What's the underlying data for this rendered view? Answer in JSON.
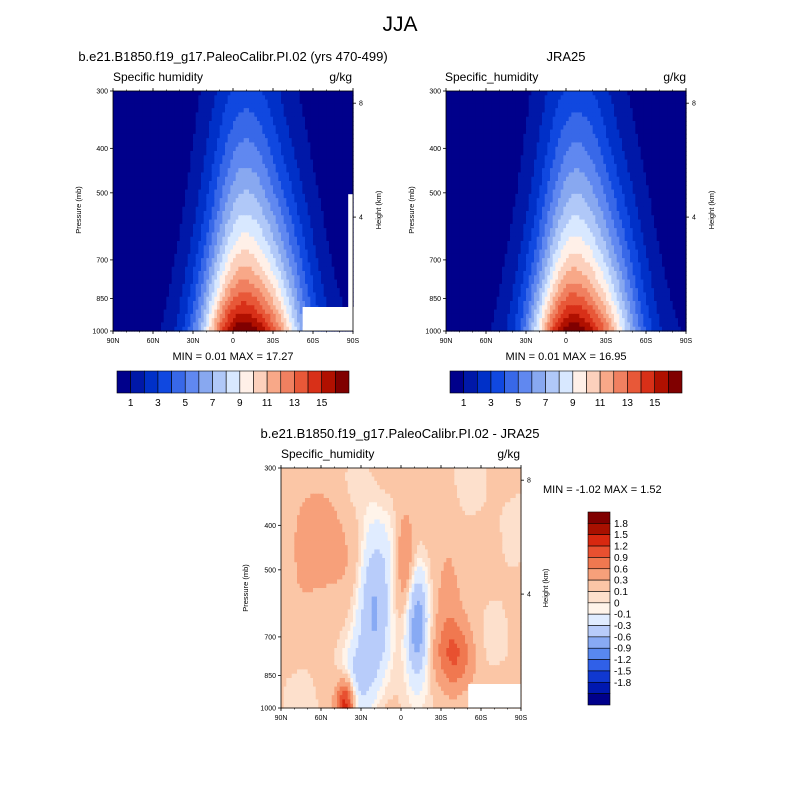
{
  "title": "JJA",
  "colors": {
    "sh_levels": [
      "#00008b",
      "#0018a8",
      "#0030c8",
      "#1048e0",
      "#3868e8",
      "#6088f0",
      "#88a8f0",
      "#b0c8f8",
      "#d8e8ff",
      "#fff0e8",
      "#fcd0bc",
      "#f8a888",
      "#f08060",
      "#e85838",
      "#d83018",
      "#b01000",
      "#800000"
    ],
    "diff_levels": [
      "#00008b",
      "#0018b0",
      "#1038d0",
      "#3060e8",
      "#5888f0",
      "#88aaf4",
      "#b8ccfa",
      "#e0ecff",
      "#fff4ea",
      "#fde0cc",
      "#fbc6a6",
      "#f7a07a",
      "#f07850",
      "#e85030",
      "#d82810",
      "#a81000",
      "#800000"
    ]
  },
  "chart_data": [
    {
      "type": "heatmap",
      "id": "model",
      "subtitle": "b.e21.B1850.f19_g17.PaleoCalibr.PI.02 (yrs 470-499)",
      "variable_label": "Specific humidity",
      "units": "g/kg",
      "ylabel": "Pressure (mb)",
      "ylabel_right": "Height (km)",
      "y_ticks": [
        "300",
        "400",
        "500",
        "700",
        "850",
        "1000"
      ],
      "y_right_ticks": [
        "8",
        "4"
      ],
      "x_ticks": [
        "90N",
        "60N",
        "30N",
        "0",
        "30S",
        "60S",
        "90S"
      ],
      "min": 0.01,
      "max": 17.27,
      "stat_text": "MIN =   0.01  MAX =  17.27",
      "colorbar_labels": [
        "1",
        "3",
        "5",
        "7",
        "9",
        "11",
        "13",
        "15"
      ],
      "profile": {
        "center_lat": -10,
        "surface_peak": 17.27,
        "fill_missing": true
      }
    },
    {
      "type": "heatmap",
      "id": "obs",
      "subtitle": "JRA25",
      "variable_label": "Specific_humidity",
      "units": "g/kg",
      "ylabel": "Pressure (mb)",
      "ylabel_right": "Height (km)",
      "y_ticks": [
        "300",
        "400",
        "500",
        "700",
        "850",
        "1000"
      ],
      "y_right_ticks": [
        "8",
        "4"
      ],
      "x_ticks": [
        "90N",
        "60N",
        "30N",
        "0",
        "30S",
        "60S",
        "90S"
      ],
      "min": 0.01,
      "max": 16.95,
      "stat_text": "MIN =   0.01  MAX =  16.95",
      "colorbar_labels": [
        "1",
        "3",
        "5",
        "7",
        "9",
        "11",
        "13",
        "15"
      ],
      "profile": {
        "center_lat": -8,
        "surface_peak": 16.95,
        "fill_missing": false
      }
    },
    {
      "type": "heatmap",
      "id": "diff",
      "subtitle": "b.e21.B1850.f19_g17.PaleoCalibr.PI.02 - JRA25",
      "variable_label": "Specific_humidity",
      "units": "g/kg",
      "ylabel": "Pressure (mb)",
      "ylabel_right": "Height (km)",
      "y_ticks": [
        "300",
        "400",
        "500",
        "700",
        "850",
        "1000"
      ],
      "y_right_ticks": [
        "8",
        "4"
      ],
      "x_ticks": [
        "90N",
        "60N",
        "30N",
        "0",
        "30S",
        "60S",
        "90S"
      ],
      "min": -1.02,
      "max": 1.52,
      "stat_text": "MIN = -1.02  MAX =   1.52",
      "colorbar_labels": [
        "1.8",
        "1.5",
        "1.2",
        "0.9",
        "0.6",
        "0.3",
        "0.1",
        "0",
        "-0.1",
        "-0.3",
        "-0.6",
        "-0.9",
        "-1.2",
        "-1.5",
        "-1.8"
      ]
    }
  ]
}
